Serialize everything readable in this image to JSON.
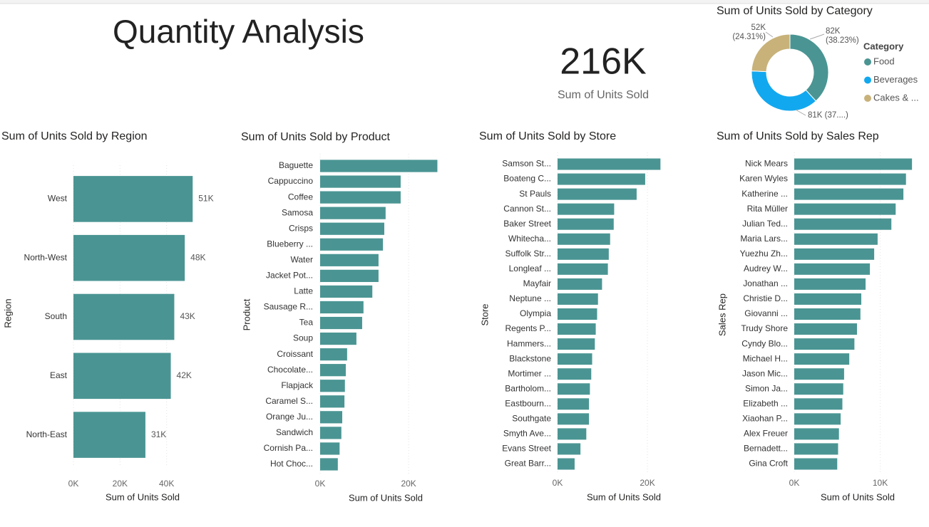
{
  "header": {
    "title": "Quantity Analysis"
  },
  "kpi": {
    "value": "216K",
    "label": "Sum of Units Sold"
  },
  "chart_data": [
    {
      "type": "donut",
      "title": "Sum of Units Sold by Category",
      "legend_title": "Category",
      "categories": [
        "Food",
        "Beverages",
        "Cakes & ..."
      ],
      "values": [
        82195,
        80538,
        52267
      ],
      "value_labels": [
        "82K (38.23%)",
        "81K (37....)",
        "52K (24.31%)"
      ],
      "colors": [
        "#4a9593",
        "#12a8ef",
        "#c8b27a"
      ],
      "legend_position": "right"
    },
    {
      "type": "bar",
      "horizontal": true,
      "title": "Sum of Units Sold by Region",
      "xlabel": "Sum of Units Sold",
      "ylabel": "Region",
      "categories": [
        "West",
        "North-West",
        "South",
        "East",
        "North-East"
      ],
      "values": [
        51200,
        47800,
        43300,
        41800,
        30900
      ],
      "value_labels": [
        "51K",
        "48K",
        "43K",
        "42K",
        "31K"
      ],
      "color": "#4a9593",
      "xlim": [
        0,
        60000
      ],
      "xticks": [
        {
          "value": 0,
          "label": "0K"
        },
        {
          "value": 20000,
          "label": "20K"
        },
        {
          "value": 40000,
          "label": "40K"
        }
      ],
      "grid": true
    },
    {
      "type": "bar",
      "horizontal": true,
      "title": "Sum of Units Sold by Product",
      "xlabel": "Sum of Units Sold",
      "ylabel": "Product",
      "categories": [
        "Baguette",
        "Cappuccino",
        "Coffee",
        "Samosa",
        "Crisps",
        "Blueberry ...",
        "Water",
        "Jacket Pot...",
        "Latte",
        "Sausage R...",
        "Tea",
        "Soup",
        "Croissant",
        "Chocolate...",
        "Flapjack",
        "Caramel S...",
        "Orange Ju...",
        "Sandwich",
        "Cornish Pa...",
        "Hot Choc..."
      ],
      "values": [
        26500,
        18200,
        18200,
        14800,
        14500,
        14200,
        13200,
        13200,
        11800,
        9800,
        9500,
        8200,
        6100,
        5800,
        5600,
        5500,
        5000,
        4800,
        4400,
        4000
      ],
      "color": "#4a9593",
      "xlim": [
        0,
        34000
      ],
      "xticks": [
        {
          "value": 0,
          "label": "0K"
        },
        {
          "value": 20000,
          "label": "20K"
        }
      ],
      "grid": true
    },
    {
      "type": "bar",
      "horizontal": true,
      "title": "Sum of Units Sold by Store",
      "xlabel": "Sum of Units Sold",
      "ylabel": "Store",
      "categories": [
        "Samson St...",
        "Boateng C...",
        "St Pauls",
        "Cannon St...",
        "Baker Street",
        "Whitecha...",
        "Suffolk Str...",
        "Longleaf ...",
        "Mayfair",
        "Neptune ...",
        "Olympia",
        "Regents P...",
        "Hammers...",
        "Blackstone",
        "Mortimer ...",
        "Bartholom...",
        "Eastbourn...",
        "Southgate",
        "Smyth Ave...",
        "Evans Street",
        "Great Barr..."
      ],
      "values": [
        22900,
        19500,
        17600,
        12600,
        12500,
        11700,
        11400,
        11200,
        9900,
        9000,
        8800,
        8500,
        8300,
        7700,
        7500,
        7200,
        7000,
        7000,
        6400,
        5100,
        3800
      ],
      "color": "#4a9593",
      "xlim": [
        0,
        33000
      ],
      "xticks": [
        {
          "value": 0,
          "label": "0K"
        },
        {
          "value": 20000,
          "label": "20K"
        }
      ],
      "grid": true
    },
    {
      "type": "bar",
      "horizontal": true,
      "title": "Sum of Units Sold by Sales Rep",
      "xlabel": "Sum of Units Sold",
      "ylabel": "Sales Rep",
      "categories": [
        "Nick Mears",
        "Karen Wyles",
        "Katherine ...",
        "Rita Müller",
        "Julian Ted...",
        "Maria Lars...",
        "Yuezhu Zh...",
        "Audrey W...",
        "Jonathan ...",
        "Christie D...",
        "Giovanni ...",
        "Trudy Shore",
        "Cyndy Blo...",
        "Michael H...",
        "Jason Mic...",
        "Simon Ja...",
        "Elizabeth ...",
        "Xiaohan P...",
        "Alex Freuer",
        "Bernadett...",
        "Gina Croft"
      ],
      "values": [
        13700,
        13000,
        12700,
        11800,
        11300,
        9700,
        9300,
        8800,
        8300,
        7800,
        7700,
        7300,
        7000,
        6400,
        5800,
        5700,
        5600,
        5400,
        5200,
        5100,
        5000
      ],
      "color": "#4a9593",
      "xlim": [
        0,
        14600
      ],
      "xticks": [
        {
          "value": 0,
          "label": "0K"
        },
        {
          "value": 10000,
          "label": "10K"
        }
      ],
      "grid": true
    }
  ]
}
